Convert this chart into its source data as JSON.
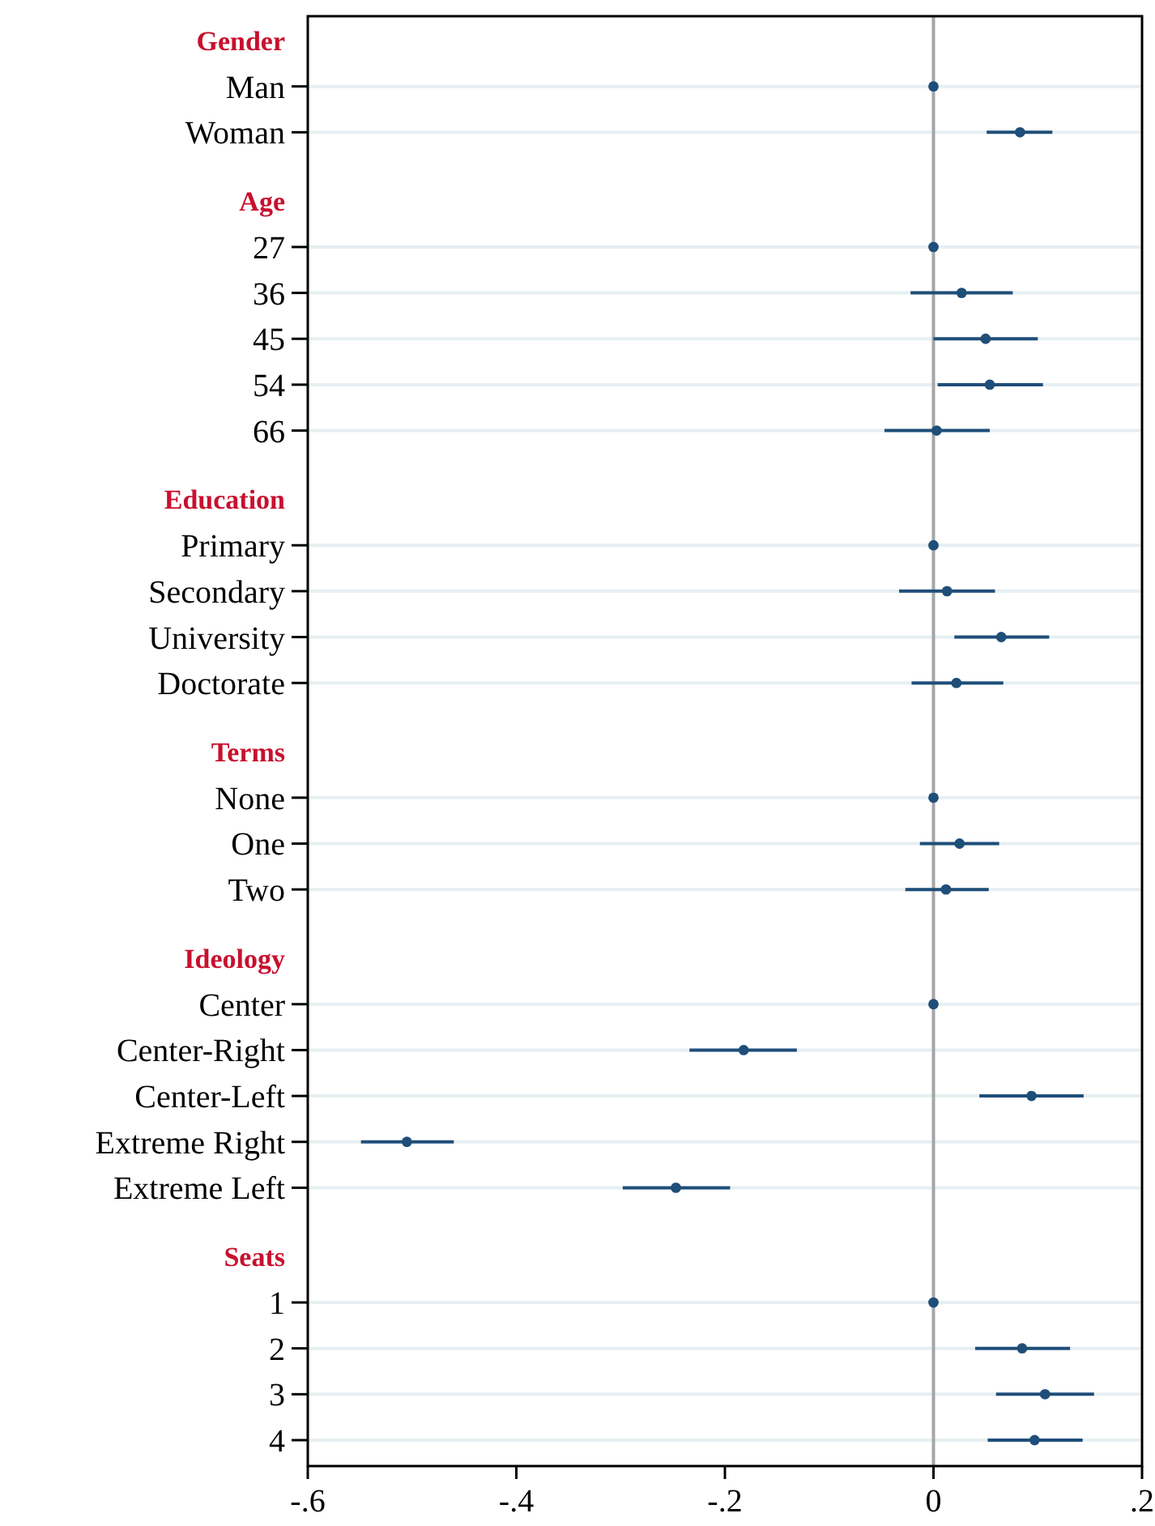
{
  "chart_data": {
    "type": "scatter",
    "orientation": "horizontal",
    "categories": [
      "Gender",
      "Man",
      "Woman",
      "Age",
      "27",
      "36",
      "45",
      "54",
      "66",
      "Education",
      "Primary",
      "Secondary",
      "University",
      "Doctorate",
      "Terms",
      "None",
      "One",
      "Two",
      "Ideology",
      "Center",
      "Center-Right",
      "Center-Left",
      "Extreme Right",
      "Extreme Left",
      "Seats",
      "1",
      "2",
      "3",
      "4"
    ],
    "series": [
      {
        "color": "#1f4e79",
        "values": [
          null,
          0,
          0.083,
          null,
          0,
          0.027,
          0.05,
          0.054,
          0.003,
          null,
          0,
          0.013,
          0.065,
          0.022,
          null,
          0,
          0.025,
          0.012,
          null,
          0,
          -0.182,
          0.094,
          -0.505,
          -0.247,
          null,
          0,
          0.085,
          0.107,
          0.097
        ],
        "errors": [
          null,
          null,
          [
            0.051,
            0.114
          ],
          null,
          null,
          [
            -0.022,
            0.076
          ],
          [
            0.0,
            0.1
          ],
          [
            0.004,
            0.105
          ],
          [
            -0.047,
            0.054
          ],
          null,
          null,
          [
            -0.033,
            0.059
          ],
          [
            0.02,
            0.111
          ],
          [
            -0.021,
            0.067
          ],
          null,
          null,
          [
            -0.013,
            0.063
          ],
          [
            -0.027,
            0.053
          ],
          null,
          null,
          [
            -0.234,
            -0.131
          ],
          [
            0.044,
            0.144
          ],
          [
            -0.549,
            -0.46
          ],
          [
            -0.298,
            -0.195
          ],
          null,
          null,
          [
            0.04,
            0.131
          ],
          [
            0.06,
            0.154
          ],
          [
            0.052,
            0.143
          ]
        ]
      }
    ],
    "xlim": [
      -0.6,
      0.2
    ],
    "xticks": [
      {
        "value": -0.6,
        "label": "-.6"
      },
      {
        "value": -0.4,
        "label": "-.4"
      },
      {
        "value": -0.2,
        "label": "-.2"
      },
      0,
      {
        "value": 0.2,
        "label": ".2"
      }
    ],
    "ref_lines": [
      {
        "axis": "x",
        "value": 0,
        "color": "#a6a6a6"
      }
    ],
    "grid": "y",
    "marker": "circle"
  }
}
